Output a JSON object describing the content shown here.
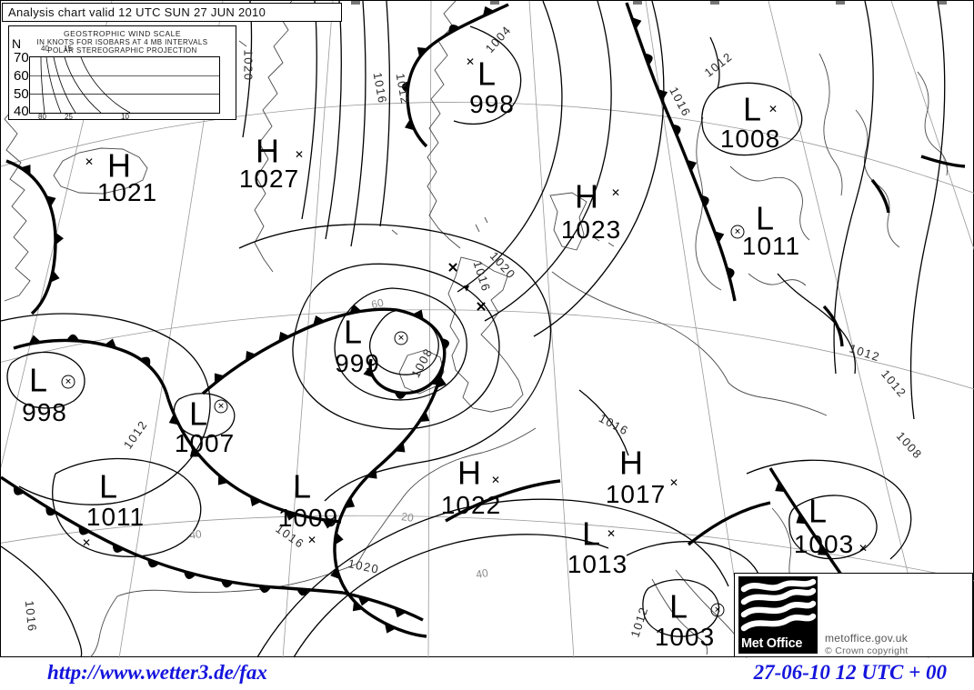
{
  "title": "Analysis chart valid 12 UTC SUN 27 JUN 2010",
  "wind_scale": {
    "title": "GEOSTROPHIC WIND SCALE",
    "subtitle1": "IN KNOTS FOR ISOBARS AT  4 MB INTERVALS",
    "subtitle2": "POLAR STEREOGRAPHIC PROJECTION",
    "hemisphere_label": "N",
    "latitude_ticks": [
      "70",
      "60",
      "50",
      "40"
    ],
    "curve_labels_top": [
      "40",
      "15"
    ],
    "curve_labels_bottom": [
      "80",
      "25",
      "10"
    ]
  },
  "pressure_centers": [
    {
      "letter": "H",
      "value": "1021",
      "lp": [
        130,
        183
      ],
      "vp": [
        139,
        211
      ],
      "mark": {
        "p": [
          97,
          177
        ],
        "circled": false
      }
    },
    {
      "letter": "H",
      "value": "1027",
      "lp": [
        293,
        167
      ],
      "vp": [
        295,
        196
      ],
      "mark": {
        "p": [
          328,
          169
        ],
        "circled": false
      }
    },
    {
      "letter": "L",
      "value": "998",
      "lp": [
        534,
        82
      ],
      "vp": [
        540,
        114
      ],
      "mark": {
        "p": [
          516,
          67
        ],
        "circled": false
      }
    },
    {
      "letter": "L",
      "value": "1008",
      "lp": [
        826,
        121
      ],
      "vp": [
        824,
        152
      ],
      "mark": {
        "p": [
          849,
          119
        ],
        "circled": false
      }
    },
    {
      "letter": "H",
      "value": "1023",
      "lp": [
        644,
        217
      ],
      "vp": [
        649,
        252
      ],
      "mark": {
        "p": [
          676,
          211
        ],
        "circled": false
      }
    },
    {
      "letter": "L",
      "value": "1011",
      "lp": [
        840,
        241
      ],
      "vp": [
        847,
        270
      ],
      "mark": {
        "p": [
          810,
          254
        ],
        "circled": true
      }
    },
    {
      "letter": "L",
      "value": "999",
      "lp": [
        387,
        366
      ],
      "vp": [
        392,
        399
      ],
      "mark": {
        "p": [
          440,
          371
        ],
        "circled": true
      }
    },
    {
      "letter": "L",
      "value": "998",
      "lp": [
        41,
        419
      ],
      "vp": [
        48,
        453
      ],
      "mark": {
        "p": [
          74,
          419
        ],
        "circled": true
      }
    },
    {
      "letter": "L",
      "value": "1007",
      "lp": [
        217,
        456
      ],
      "vp": [
        224,
        487
      ],
      "mark": {
        "p": [
          242,
          446
        ],
        "circled": true
      }
    },
    {
      "letter": "L",
      "value": "1011",
      "lp": [
        118,
        536
      ],
      "vp": [
        126,
        568
      ],
      "mark": {
        "p": [
          94,
          596
        ],
        "circled": false
      }
    },
    {
      "letter": "L",
      "value": "1009",
      "lp": [
        331,
        536
      ],
      "vp": [
        338,
        569
      ],
      "mark": {
        "p": [
          342,
          593
        ],
        "circled": false
      }
    },
    {
      "letter": "H",
      "value": "1022",
      "lp": [
        515,
        521
      ],
      "vp": [
        517,
        555
      ],
      "mark": {
        "p": [
          544,
          527
        ],
        "circled": false
      }
    },
    {
      "letter": "H",
      "value": "1017",
      "lp": [
        693,
        510
      ],
      "vp": [
        698,
        543
      ],
      "mark": {
        "p": [
          740,
          530
        ],
        "circled": false
      }
    },
    {
      "letter": "L",
      "value": "1013",
      "lp": [
        649,
        588
      ],
      "vp": [
        656,
        620
      ],
      "mark": {
        "p": [
          671,
          586
        ],
        "circled": false
      }
    },
    {
      "letter": "L",
      "value": "1003",
      "lp": [
        898,
        563
      ],
      "vp": [
        905,
        598
      ],
      "mark": {
        "p": [
          948,
          602
        ],
        "circled": false
      }
    },
    {
      "letter": "L",
      "value": "1003",
      "lp": [
        745,
        668
      ],
      "vp": [
        752,
        700
      ],
      "mark": {
        "p": [
          788,
          670
        ],
        "circled": true
      }
    }
  ],
  "isobar_labels": [
    {
      "text": "1020",
      "p": [
        272,
        71
      ],
      "rot": 90
    },
    {
      "text": "1016",
      "p": [
        417,
        96
      ],
      "rot": 80
    },
    {
      "text": "1012",
      "p": [
        442,
        97
      ],
      "rot": 80
    },
    {
      "text": "1004",
      "p": [
        547,
        42
      ],
      "rot": -48
    },
    {
      "text": "1012",
      "p": [
        789,
        70
      ],
      "rot": -38
    },
    {
      "text": "1016",
      "p": [
        747,
        111
      ],
      "rot": 62
    },
    {
      "text": "1020",
      "p": [
        552,
        291
      ],
      "rot": 48
    },
    {
      "text": "1016",
      "p": [
        529,
        303
      ],
      "rot": 72
    },
    {
      "text": "1008",
      "p": [
        463,
        398
      ],
      "rot": -62
    },
    {
      "text": "1012",
      "p": [
        148,
        477
      ],
      "rot": -55
    },
    {
      "text": "1012",
      "p": [
        950,
        387
      ],
      "rot": 18
    },
    {
      "text": "1012",
      "p": [
        982,
        421
      ],
      "rot": 50
    },
    {
      "text": "1008",
      "p": [
        999,
        489
      ],
      "rot": 48
    },
    {
      "text": "1016",
      "p": [
        33,
        677
      ],
      "rot": 84
    },
    {
      "text": "1020",
      "p": [
        399,
        622
      ],
      "rot": 12
    },
    {
      "text": "1016",
      "p": [
        318,
        589
      ],
      "rot": 35
    },
    {
      "text": "1012",
      "p": [
        702,
        683
      ],
      "rot": -72
    },
    {
      "text": "1016",
      "p": [
        674,
        466
      ],
      "rot": 28
    }
  ],
  "graticule_labels": [
    {
      "text": "60",
      "p": [
        414,
        333
      ],
      "rot": -12
    },
    {
      "text": "40",
      "p": [
        214,
        587
      ],
      "rot": -8
    },
    {
      "text": "20",
      "p": [
        447,
        568
      ],
      "rot": 8
    },
    {
      "text": "40",
      "p": [
        529,
        630
      ],
      "rot": -10
    }
  ],
  "frontolysis_symbols": [
    {
      "kind": "cross",
      "p": [
        497,
        294
      ]
    },
    {
      "kind": "triangle",
      "p": [
        512,
        317
      ]
    },
    {
      "kind": "cross",
      "p": [
        528,
        337
      ]
    }
  ],
  "branding": {
    "logo_label": "Met Office",
    "url": "metoffice.gov.uk",
    "copyright": "© Crown copyright"
  },
  "footer": {
    "source_url": "http://www.wetter3.de/fax",
    "datetime_label": "27-06-10 12 UTC + 00"
  },
  "colors": {
    "ink": "#000000",
    "coastline_gray": "#4a4a4a",
    "graticule_gray": "#999999",
    "footer_blue": "#1414dd"
  }
}
